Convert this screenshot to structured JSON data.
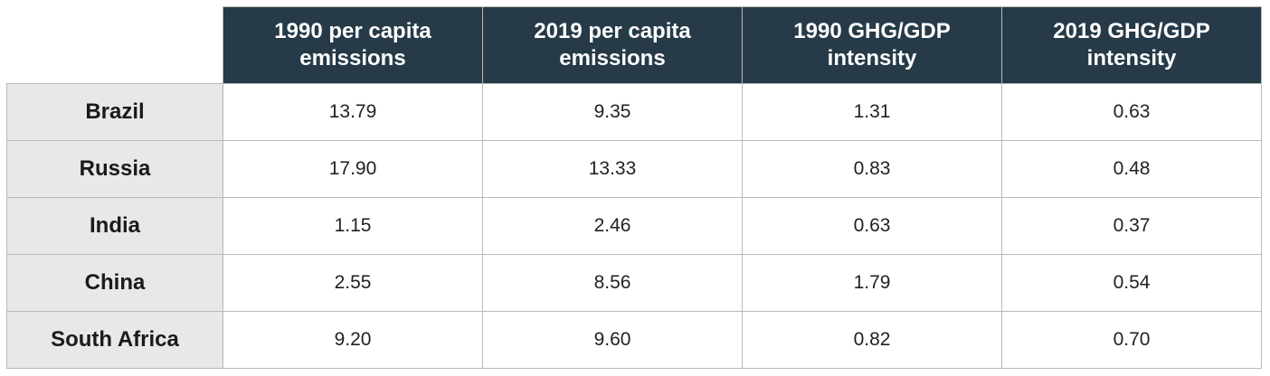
{
  "chart_data": {
    "type": "table",
    "columns": [
      "",
      "1990 per capita emissions",
      "2019 per capita emissions",
      "1990 GHG/GDP intensity",
      "2019 GHG/GDP intensity"
    ],
    "rows": [
      [
        "Brazil",
        "13.79",
        "9.35",
        "1.31",
        "0.63"
      ],
      [
        "Russia",
        "17.90",
        "13.33",
        "0.83",
        "0.48"
      ],
      [
        "India",
        "1.15",
        "2.46",
        "0.63",
        "0.37"
      ],
      [
        "China",
        "2.55",
        "8.56",
        "1.79",
        "0.54"
      ],
      [
        "South Africa",
        "9.20",
        "9.60",
        "0.82",
        "0.70"
      ]
    ]
  }
}
